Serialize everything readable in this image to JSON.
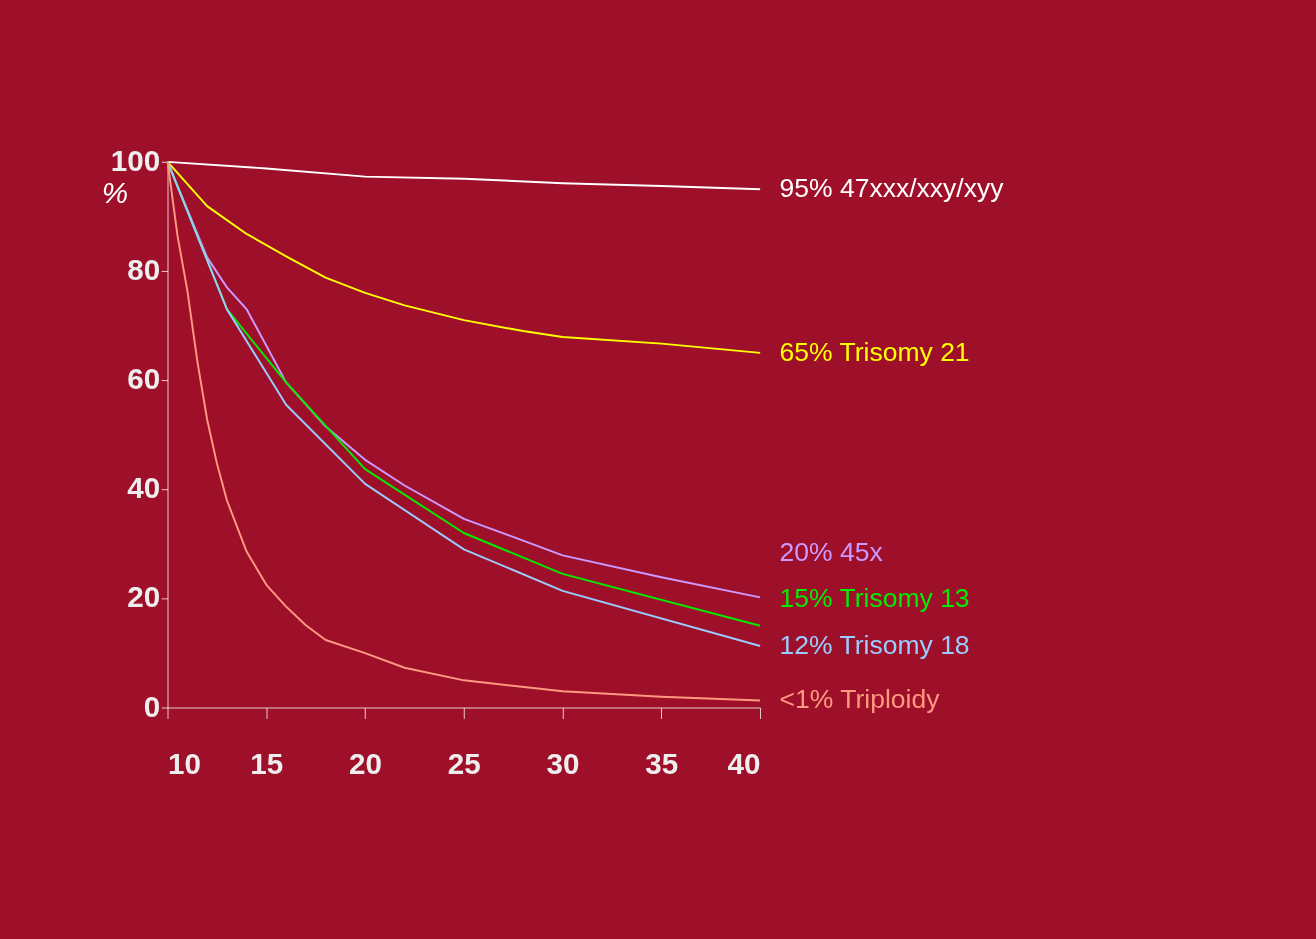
{
  "chart_data": {
    "type": "line",
    "ylabel": "%",
    "xlim": [
      10,
      40
    ],
    "ylim": [
      0,
      100
    ],
    "xticks": [
      10,
      15,
      20,
      25,
      30,
      35,
      40
    ],
    "yticks": [
      0,
      20,
      40,
      60,
      80,
      100
    ],
    "grid": false,
    "marker": "none",
    "line_style": "solid",
    "series": [
      {
        "name": "95% 47xxx/xxy/xyy",
        "color": "#ffffff",
        "x": [
          10,
          15,
          20,
          25,
          30,
          35,
          40
        ],
        "values": [
          100,
          98.8,
          97.3,
          96.9,
          96.1,
          95.6,
          95
        ]
      },
      {
        "name": "65%  Trisomy 21",
        "color": "#ffff00",
        "x": [
          10,
          12,
          14,
          16,
          18,
          20,
          22,
          25,
          28,
          30,
          35,
          40
        ],
        "values": [
          100,
          91.9,
          86.8,
          82.7,
          78.8,
          76,
          73.7,
          71,
          69,
          67.9,
          66.7,
          65
        ]
      },
      {
        "name": "20%  45x",
        "color": "#cc99ff",
        "x": [
          10,
          12,
          13,
          14,
          16,
          18,
          20,
          22,
          25,
          28,
          30,
          35,
          40
        ],
        "values": [
          100,
          82.5,
          77,
          73,
          59.6,
          51.5,
          45.4,
          40.7,
          34.6,
          30.6,
          27.9,
          23.9,
          20.2
        ]
      },
      {
        "name": "15%  Trisomy 13",
        "color": "#00ee00",
        "x": [
          10,
          13,
          16,
          20,
          25,
          30,
          40
        ],
        "values": [
          100,
          73,
          59.6,
          43.7,
          32,
          24.5,
          15
        ]
      },
      {
        "name": "12%  Trisomy 18",
        "color": "#99ccff",
        "x": [
          10,
          13,
          16,
          20,
          25,
          30,
          40
        ],
        "values": [
          100,
          73,
          55.5,
          41,
          29,
          21.4,
          11.3
        ]
      },
      {
        "name": "<1%  Triploidy",
        "color": "#ff9980",
        "x": [
          10,
          10.5,
          11,
          11.5,
          12,
          12.5,
          13,
          14,
          15,
          16,
          17,
          18,
          20,
          22,
          25,
          30,
          35,
          40
        ],
        "values": [
          100,
          86.5,
          76.4,
          63.6,
          52.8,
          44.7,
          38,
          28.6,
          22.5,
          18.5,
          15.1,
          12.4,
          10,
          7.3,
          5,
          3,
          2,
          1.3
        ]
      }
    ]
  }
}
